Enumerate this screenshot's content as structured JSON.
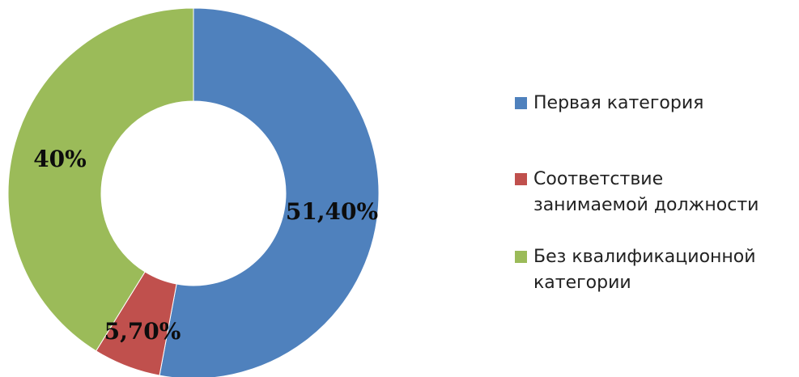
{
  "chart_data": {
    "type": "pie",
    "variant": "donut",
    "title": "",
    "categories": [
      "Первая категория",
      "Соответствие занимаемой должности",
      "Без квалификационной категории"
    ],
    "values": [
      51.4,
      5.7,
      40
    ],
    "data_labels": [
      "51,40%",
      "5,70%",
      "40%"
    ],
    "colors": [
      "#4f81bd",
      "#c0504d",
      "#9bbb59"
    ],
    "legend": {
      "placement": "right",
      "entries": [
        {
          "label_lines": [
            "Первая категория"
          ],
          "color": "#4f81bd"
        },
        {
          "label_lines": [
            "Соответствие",
            "занимаемой должности"
          ],
          "color": "#c0504d"
        },
        {
          "label_lines": [
            "Без квалификационной",
            "категории"
          ],
          "color": "#9bbb59"
        }
      ]
    }
  }
}
